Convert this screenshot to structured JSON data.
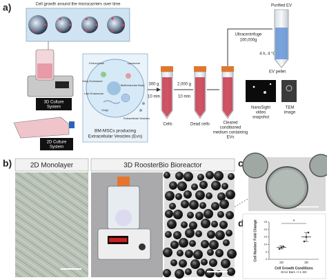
{
  "figure": {
    "a": {
      "label": "a)",
      "microcarrier_title": "Cell growth around the microcarriers over time",
      "culture_3d": [
        "3D Culture",
        "System"
      ],
      "culture_2d": [
        "2D Culture",
        "System"
      ],
      "cell_labels": [
        "Endocytosis",
        "Lysosome",
        "Early Endosome",
        "Multivesicular Body",
        "Late Endosome",
        "Golgi",
        "Extracellular Vesicles"
      ],
      "cell_caption": [
        "BM-MSCs producing",
        "Extracellular Vesicles (Evs)"
      ],
      "spin1": [
        "300 g",
        "10 min"
      ],
      "spin2": [
        "2,000 g",
        "10 min"
      ],
      "pellet1": "Cells",
      "pellet2": "Dead cells",
      "supernatant": [
        "Cleared",
        "conditioned",
        "medium containing",
        "EVs"
      ],
      "ultra": [
        "Ultracentrifuge",
        "100,000g"
      ],
      "ultra_conditions": "4 h, 4 °C",
      "purified": "Purified EV",
      "ev_pellet": "EV pellet",
      "nanosight": [
        "NanoSight",
        "video",
        "snapshot"
      ],
      "tem": [
        "TEM",
        "image"
      ]
    },
    "b": {
      "label": "b)",
      "monolayer": "2D Monolayer",
      "bioreactor": "3D RoosterBio Bioreactor"
    },
    "c": {
      "label": "c)"
    },
    "d": {
      "label": "d)"
    }
  },
  "chart_data": {
    "type": "scatter",
    "y_label": "Cell Number Fold Change",
    "x_label": "Cell Growth Conditions",
    "note": "Error Bars +/-1 SD",
    "significance": "*",
    "categories": [
      "2D",
      "3D"
    ],
    "values": [
      [
        7,
        8,
        8.5
      ],
      [
        12,
        15,
        18
      ]
    ],
    "means": [
      8,
      15
    ],
    "errors": [
      1,
      3
    ],
    "color": "#333333",
    "ylim": [
      0,
      25
    ],
    "yticks": [
      0,
      5,
      10,
      15,
      20,
      25
    ]
  }
}
